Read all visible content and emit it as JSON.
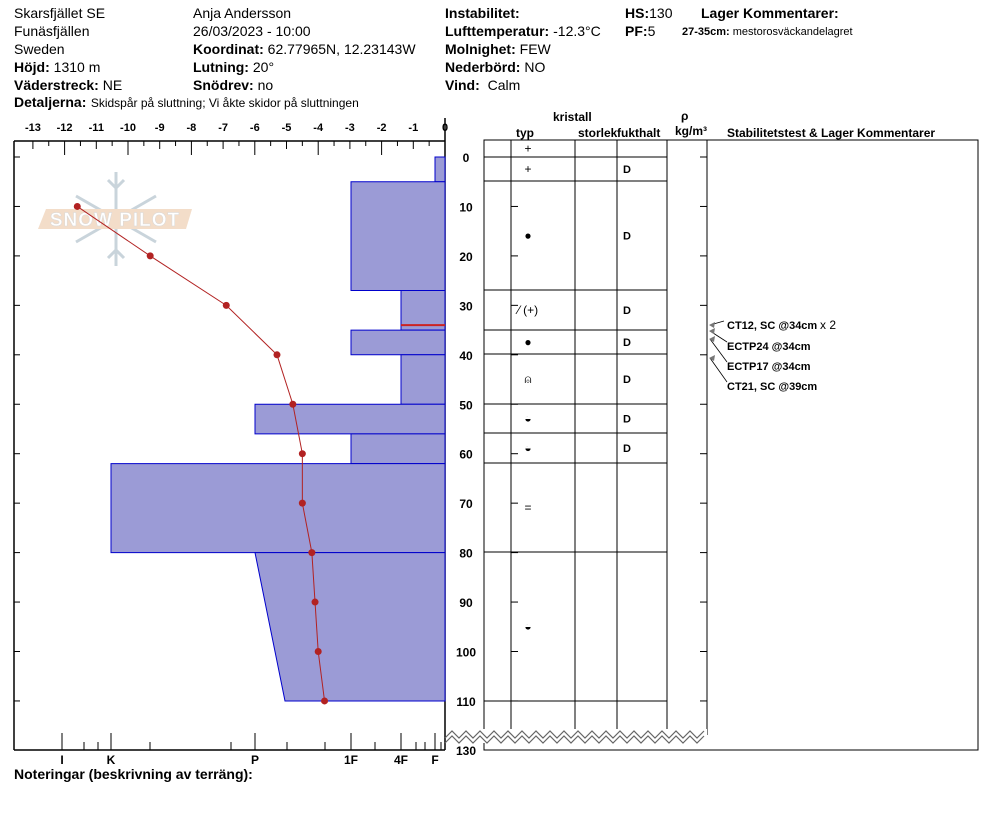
{
  "header": {
    "location": "Skarsfjället SE",
    "range": "Funäsfjällen",
    "country": "Sweden",
    "elevation_label": "Höjd:",
    "elevation": "1310 m",
    "aspect_label": "Väderstreck:",
    "aspect": "NE",
    "observer": "Anja Andersson",
    "datetime": "26/03/2023 - 10:00",
    "coord_label": "Koordinat:",
    "coord": "62.77965N, 12.23143W",
    "slope_label": "Lutning:",
    "slope": "20°",
    "drift_label": "Snödrev:",
    "drift": "no",
    "instability_label": "Instabilitet:",
    "airtemp_label": "Lufttemperatur:",
    "airtemp": "-12.3°C",
    "cloud_label": "Molnighet:",
    "cloud": "FEW",
    "precip_label": "Nederbörd:",
    "precip": "NO",
    "wind_label": "Vind:",
    "wind": "Calm",
    "hs_label": "HS:",
    "hs": "130",
    "pf_label": "PF:",
    "pf": "5",
    "layer_comments_label": "Lager Kommentarer:",
    "layer_comment_range": "27-35cm:",
    "layer_comment": "mestorosväckandelagret",
    "details_label": "Detaljerna:",
    "details": "Skidspår på sluttning;  Vi åkte skidor på sluttningen"
  },
  "table_headers": {
    "crystal": "kristall",
    "type": "typ",
    "size": "storlek",
    "moisture": "fukthalt",
    "rho": "ρ",
    "density_unit": "kg/m³",
    "stability": "Stabilitetstest & Lager Kommentarer"
  },
  "notes_label": "Noteringar (beskrivning av terräng):",
  "logo": "SNOW PILOT",
  "colors": {
    "hardness_fill": "#9b9bd6",
    "hardness_stroke": "#0000cc",
    "temp": "#b22222",
    "weak_layer": "#cc2222"
  },
  "chart_data": {
    "type": "snow-profile",
    "temperature_axis": {
      "ticks": [
        -13,
        -12,
        -11,
        -10,
        -9,
        -8,
        -7,
        -6,
        -5,
        -4,
        -3,
        -2,
        -1,
        0
      ],
      "range": [
        -13.6,
        0
      ]
    },
    "depth_axis": {
      "ticks": [
        0,
        10,
        20,
        30,
        40,
        50,
        60,
        70,
        80,
        90,
        100,
        110
      ],
      "extra_tick": 130,
      "range": [
        0,
        130
      ]
    },
    "hardness_axis": {
      "ticks": [
        "I",
        "K",
        "P",
        "1F",
        "4F",
        "F"
      ]
    },
    "temperature_profile": [
      {
        "depth": 10,
        "temp": -11.6
      },
      {
        "depth": 20,
        "temp": -9.3
      },
      {
        "depth": 30,
        "temp": -6.9
      },
      {
        "depth": 40,
        "temp": -5.3
      },
      {
        "depth": 50,
        "temp": -4.8
      },
      {
        "depth": 60,
        "temp": -4.5
      },
      {
        "depth": 70,
        "temp": -4.5
      },
      {
        "depth": 80,
        "temp": -4.2
      },
      {
        "depth": 90,
        "temp": -4.1
      },
      {
        "depth": 100,
        "temp": -4.0
      },
      {
        "depth": 110,
        "temp": -3.8
      }
    ],
    "hardness_layers": [
      {
        "top": 0,
        "bottom": 5,
        "hardness_top": "F",
        "hardness_bottom": "F"
      },
      {
        "top": 5,
        "bottom": 27,
        "hardness_top": "1F",
        "hardness_bottom": "1F"
      },
      {
        "top": 27,
        "bottom": 35,
        "hardness_top": "4F",
        "hardness_bottom": "4F"
      },
      {
        "top": 35,
        "bottom": 40,
        "hardness_top": "1F",
        "hardness_bottom": "1F"
      },
      {
        "top": 40,
        "bottom": 50,
        "hardness_top": "4F",
        "hardness_bottom": "4F"
      },
      {
        "top": 50,
        "bottom": 56,
        "hardness_top": "P",
        "hardness_bottom": "P"
      },
      {
        "top": 56,
        "bottom": 62,
        "hardness_top": "1F",
        "hardness_bottom": "1F"
      },
      {
        "top": 62,
        "bottom": 80,
        "hardness_top": "K",
        "hardness_bottom": "K"
      },
      {
        "top": 80,
        "bottom": 110,
        "hardness_top": "P",
        "hardness_bottom": "P-"
      }
    ],
    "weak_layer_depth": 34,
    "layer_rows": [
      {
        "grain": "+",
        "moisture": ""
      },
      {
        "grain": "+",
        "moisture": "D"
      },
      {
        "grain": "●",
        "moisture": "D"
      },
      {
        "grain": "⁄ (+)",
        "moisture": "D"
      },
      {
        "grain": "●",
        "moisture": "D"
      },
      {
        "grain": "⍝",
        "moisture": "D"
      },
      {
        "grain": "◒",
        "moisture": "D"
      },
      {
        "grain": "◒",
        "moisture": "D"
      },
      {
        "grain": "=",
        "moisture": ""
      },
      {
        "grain": "◒",
        "moisture": ""
      }
    ],
    "stability_tests": [
      {
        "text": "CT12, SC @34cm",
        "extra": "x 2"
      },
      {
        "text": "ECTP24 @34cm",
        "extra": ""
      },
      {
        "text": "ECTP17 @34cm",
        "extra": ""
      },
      {
        "text": "CT21, SC @39cm",
        "extra": ""
      }
    ]
  }
}
